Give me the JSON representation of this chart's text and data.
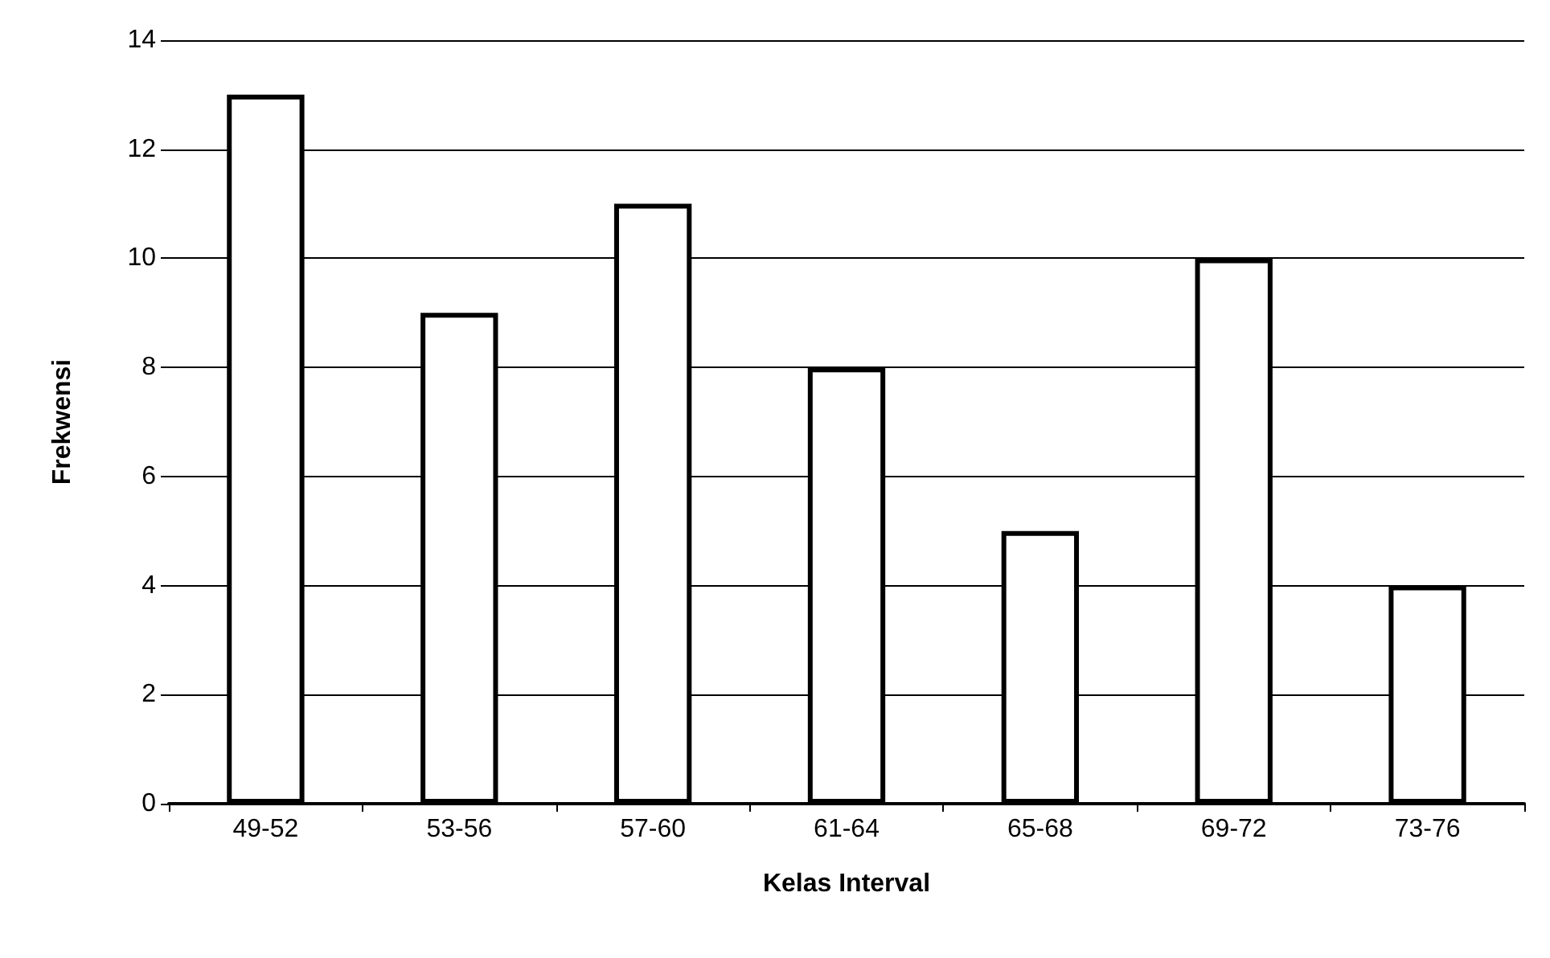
{
  "chart_data": {
    "type": "bar",
    "xlabel": "Kelas Interval",
    "ylabel": "Frekwensi",
    "categories": [
      "49-52",
      "53-56",
      "57-60",
      "61-64",
      "65-68",
      "69-72",
      "73-76"
    ],
    "values": [
      13,
      9,
      11,
      8,
      5,
      10,
      4
    ],
    "color": "#ffffff",
    "ylim": [
      0,
      14
    ],
    "yticks": [
      0,
      2,
      4,
      6,
      8,
      10,
      12,
      14
    ],
    "grid": "y"
  }
}
